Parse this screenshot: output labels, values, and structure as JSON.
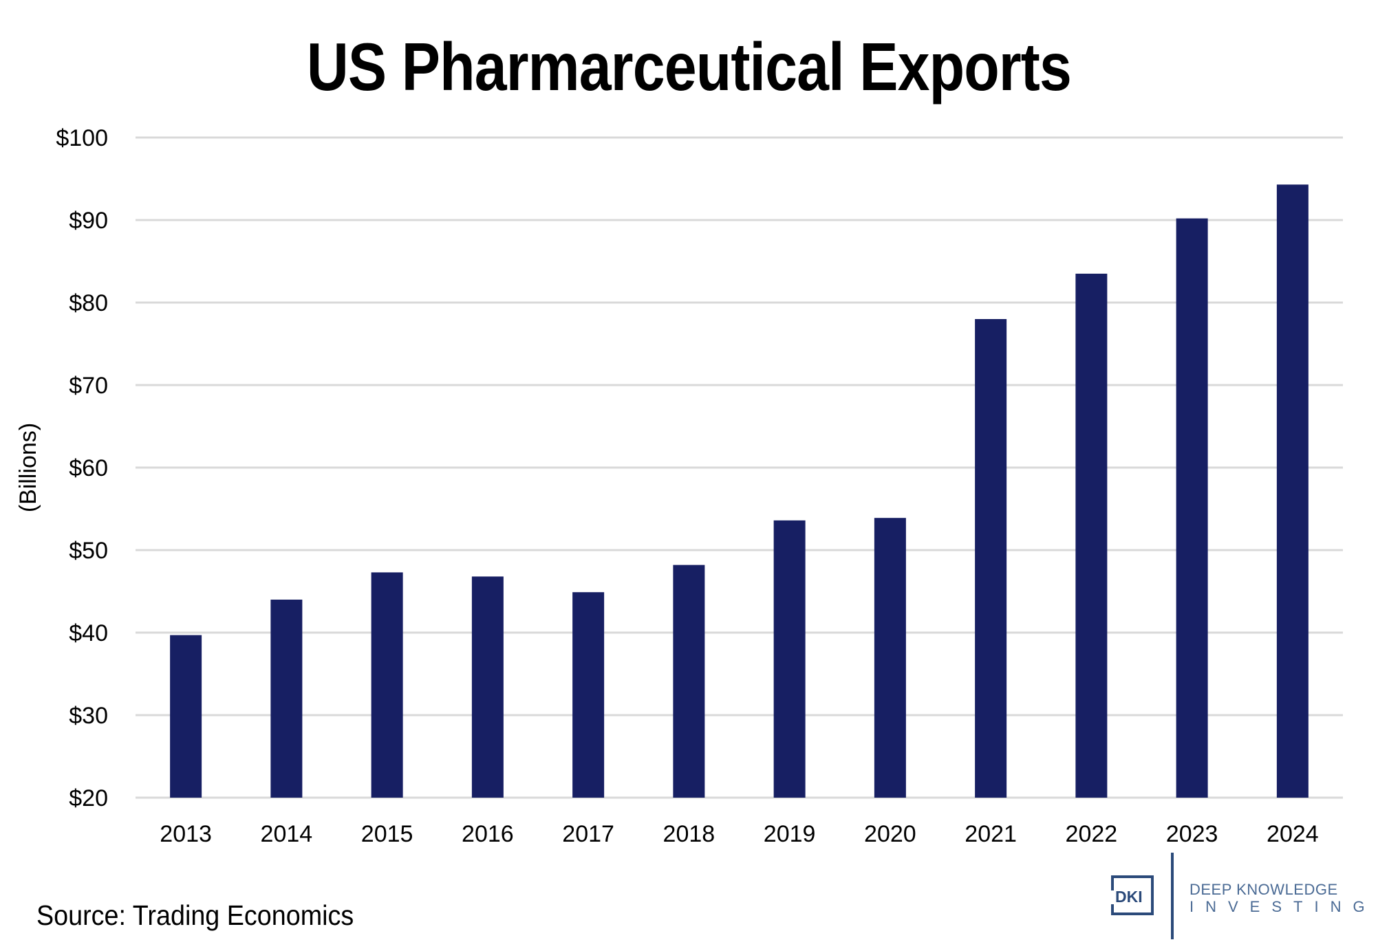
{
  "chart_data": {
    "type": "bar",
    "title": "US Pharmarceutical Exports",
    "xlabel": "",
    "ylabel": "(Billions)",
    "categories": [
      "2013",
      "2014",
      "2015",
      "2016",
      "2017",
      "2018",
      "2019",
      "2020",
      "2021",
      "2022",
      "2023",
      "2024"
    ],
    "values": [
      39.7,
      44.0,
      47.3,
      46.8,
      44.9,
      48.2,
      53.6,
      53.9,
      78.0,
      83.5,
      90.2,
      94.3
    ],
    "ylim": [
      20,
      100
    ],
    "yticks": [
      20,
      30,
      40,
      50,
      60,
      70,
      80,
      90,
      100
    ],
    "ytick_labels": [
      "$20",
      "$30",
      "$40",
      "$50",
      "$60",
      "$70",
      "$80",
      "$90",
      "$100"
    ],
    "grid": true,
    "legend": "none",
    "bar_color": "#171f63",
    "grid_color": "#d9d9d9"
  },
  "source": "Source: Trading Economics",
  "logo": {
    "abbr": "DKI",
    "line1": "DEEP KNOWLEDGE",
    "line2": "INVESTING",
    "color": "#2b4a7a"
  }
}
